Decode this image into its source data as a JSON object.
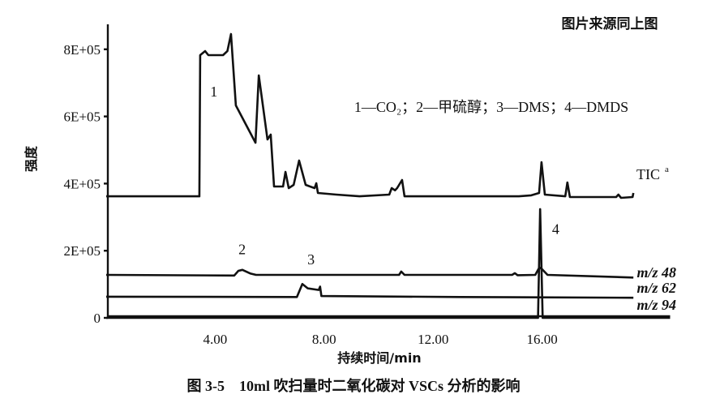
{
  "source_note": "图片来源同上图",
  "caption": "图 3-5　10ml 吹扫量时二氧化碳对 VSCs 分析的影响",
  "chart_data": {
    "type": "line",
    "title": "",
    "xlabel": "持续时间/min",
    "ylabel": "强度",
    "xlim": [
      0,
      20.7
    ],
    "ylim": [
      0,
      880000
    ],
    "grid": false,
    "x_ticks": [
      4,
      8,
      12,
      16
    ],
    "x_tick_labels": [
      "4.00",
      "8.00",
      "12.00",
      "16.00"
    ],
    "y_ticks": [
      0,
      200000,
      400000,
      600000,
      800000
    ],
    "y_tick_labels": [
      "0",
      "2E+05",
      "4E+05",
      "6E+05",
      "8E+05"
    ],
    "legend_text": "1—CO₂；2—甲硫醇；3—DMS；4—DMDS",
    "peak_labels": [
      {
        "text": "1",
        "t": 3.95,
        "v": 660000
      },
      {
        "text": "2",
        "t": 4.99,
        "v": 190000
      },
      {
        "text": "3",
        "t": 7.52,
        "v": 160000
      },
      {
        "text": "4",
        "t": 16.5,
        "v": 250000
      }
    ],
    "series": [
      {
        "name": "TIC",
        "name_sup": "a",
        "points": [
          [
            0,
            362000
          ],
          [
            3.42,
            362000
          ],
          [
            3.45,
            782600
          ],
          [
            3.63,
            794700
          ],
          [
            3.75,
            782600
          ],
          [
            4.29,
            782600
          ],
          [
            4.45,
            795000
          ],
          [
            4.58,
            845400
          ],
          [
            4.76,
            632900
          ],
          [
            5.48,
            521700
          ],
          [
            5.6,
            722200
          ],
          [
            5.92,
            531400
          ],
          [
            6.04,
            545900
          ],
          [
            6.16,
            391300
          ],
          [
            6.49,
            391300
          ],
          [
            6.58,
            434800
          ],
          [
            6.7,
            386500
          ],
          [
            6.88,
            396100
          ],
          [
            7.08,
            468600
          ],
          [
            7.32,
            396100
          ],
          [
            7.65,
            386500
          ],
          [
            7.71,
            401000
          ],
          [
            7.77,
            372000
          ],
          [
            8.45,
            367100
          ],
          [
            9.3,
            362000
          ],
          [
            10.39,
            367100
          ],
          [
            10.48,
            386500
          ],
          [
            10.6,
            380000
          ],
          [
            10.68,
            386500
          ],
          [
            10.86,
            410600
          ],
          [
            10.95,
            362000
          ],
          [
            13.0,
            362000
          ],
          [
            15.15,
            362000
          ],
          [
            15.6,
            365000
          ],
          [
            15.89,
            372000
          ],
          [
            15.98,
            463800
          ],
          [
            16.1,
            367100
          ],
          [
            16.85,
            362000
          ],
          [
            16.93,
            403400
          ],
          [
            17.02,
            359900
          ],
          [
            18.72,
            359900
          ],
          [
            18.8,
            367100
          ],
          [
            18.9,
            357500
          ],
          [
            19.32,
            359900
          ],
          [
            19.35,
            372000
          ]
        ]
      },
      {
        "name": "m/z 48",
        "points": [
          [
            0,
            128000
          ],
          [
            4.7,
            126000
          ],
          [
            4.85,
            140000
          ],
          [
            5.0,
            143000
          ],
          [
            5.3,
            132000
          ],
          [
            5.5,
            128000
          ],
          [
            10.75,
            128000
          ],
          [
            10.83,
            138000
          ],
          [
            10.95,
            128000
          ],
          [
            14.9,
            128000
          ],
          [
            15.0,
            133000
          ],
          [
            15.1,
            127000
          ],
          [
            15.75,
            128000
          ],
          [
            15.9,
            150000
          ],
          [
            16.0,
            145000
          ],
          [
            16.2,
            128000
          ],
          [
            19.35,
            120000
          ]
        ]
      },
      {
        "name": "m/z 62",
        "points": [
          [
            0,
            63000
          ],
          [
            7.0,
            62000
          ],
          [
            7.2,
            101000
          ],
          [
            7.4,
            88000
          ],
          [
            7.8,
            83000
          ],
          [
            7.85,
            93000
          ],
          [
            7.9,
            65000
          ],
          [
            13.0,
            62000
          ],
          [
            19.35,
            60000
          ]
        ]
      },
      {
        "name": "m/z 94",
        "points": [
          [
            0,
            0
          ],
          [
            15.85,
            0
          ],
          [
            15.93,
            324000
          ],
          [
            16.02,
            0
          ],
          [
            20.7,
            0
          ]
        ]
      }
    ]
  }
}
